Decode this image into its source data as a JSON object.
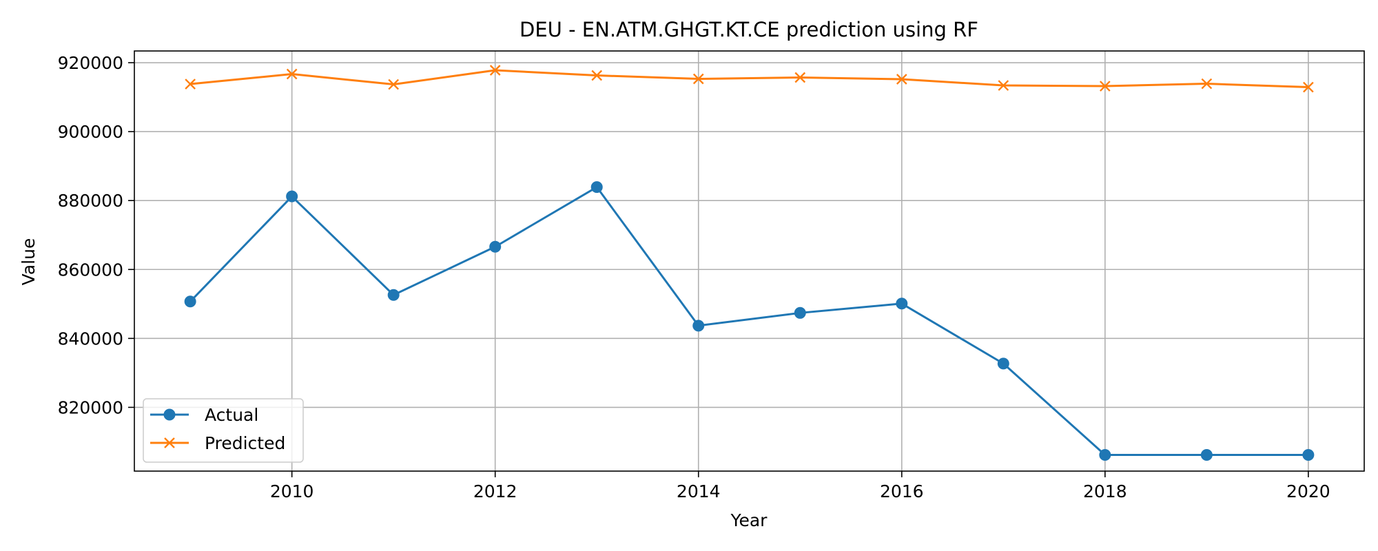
{
  "chart_data": {
    "type": "line",
    "title": "DEU - EN.ATM.GHGT.KT.CE prediction using RF",
    "xlabel": "Year",
    "ylabel": "Value",
    "x": [
      2009,
      2010,
      2011,
      2012,
      2013,
      2014,
      2015,
      2016,
      2017,
      2018,
      2019,
      2020
    ],
    "xlim": [
      2008.45,
      2020.55
    ],
    "ylim": [
      801500,
      923400
    ],
    "xticks": [
      2010,
      2012,
      2014,
      2016,
      2018,
      2020
    ],
    "yticks": [
      820000,
      840000,
      860000,
      880000,
      900000,
      920000
    ],
    "grid": true,
    "legend_position": "lower-left",
    "series": [
      {
        "name": "Actual",
        "color": "#1f77b4",
        "marker": "circle",
        "values": [
          850700,
          881200,
          852600,
          866600,
          883900,
          843700,
          847400,
          850100,
          832700,
          806200,
          806200,
          806200
        ]
      },
      {
        "name": "Predicted",
        "color": "#ff7f0e",
        "marker": "x",
        "values": [
          913800,
          916700,
          913700,
          917800,
          916300,
          915300,
          915700,
          915200,
          913400,
          913200,
          913900,
          912900
        ]
      }
    ]
  }
}
